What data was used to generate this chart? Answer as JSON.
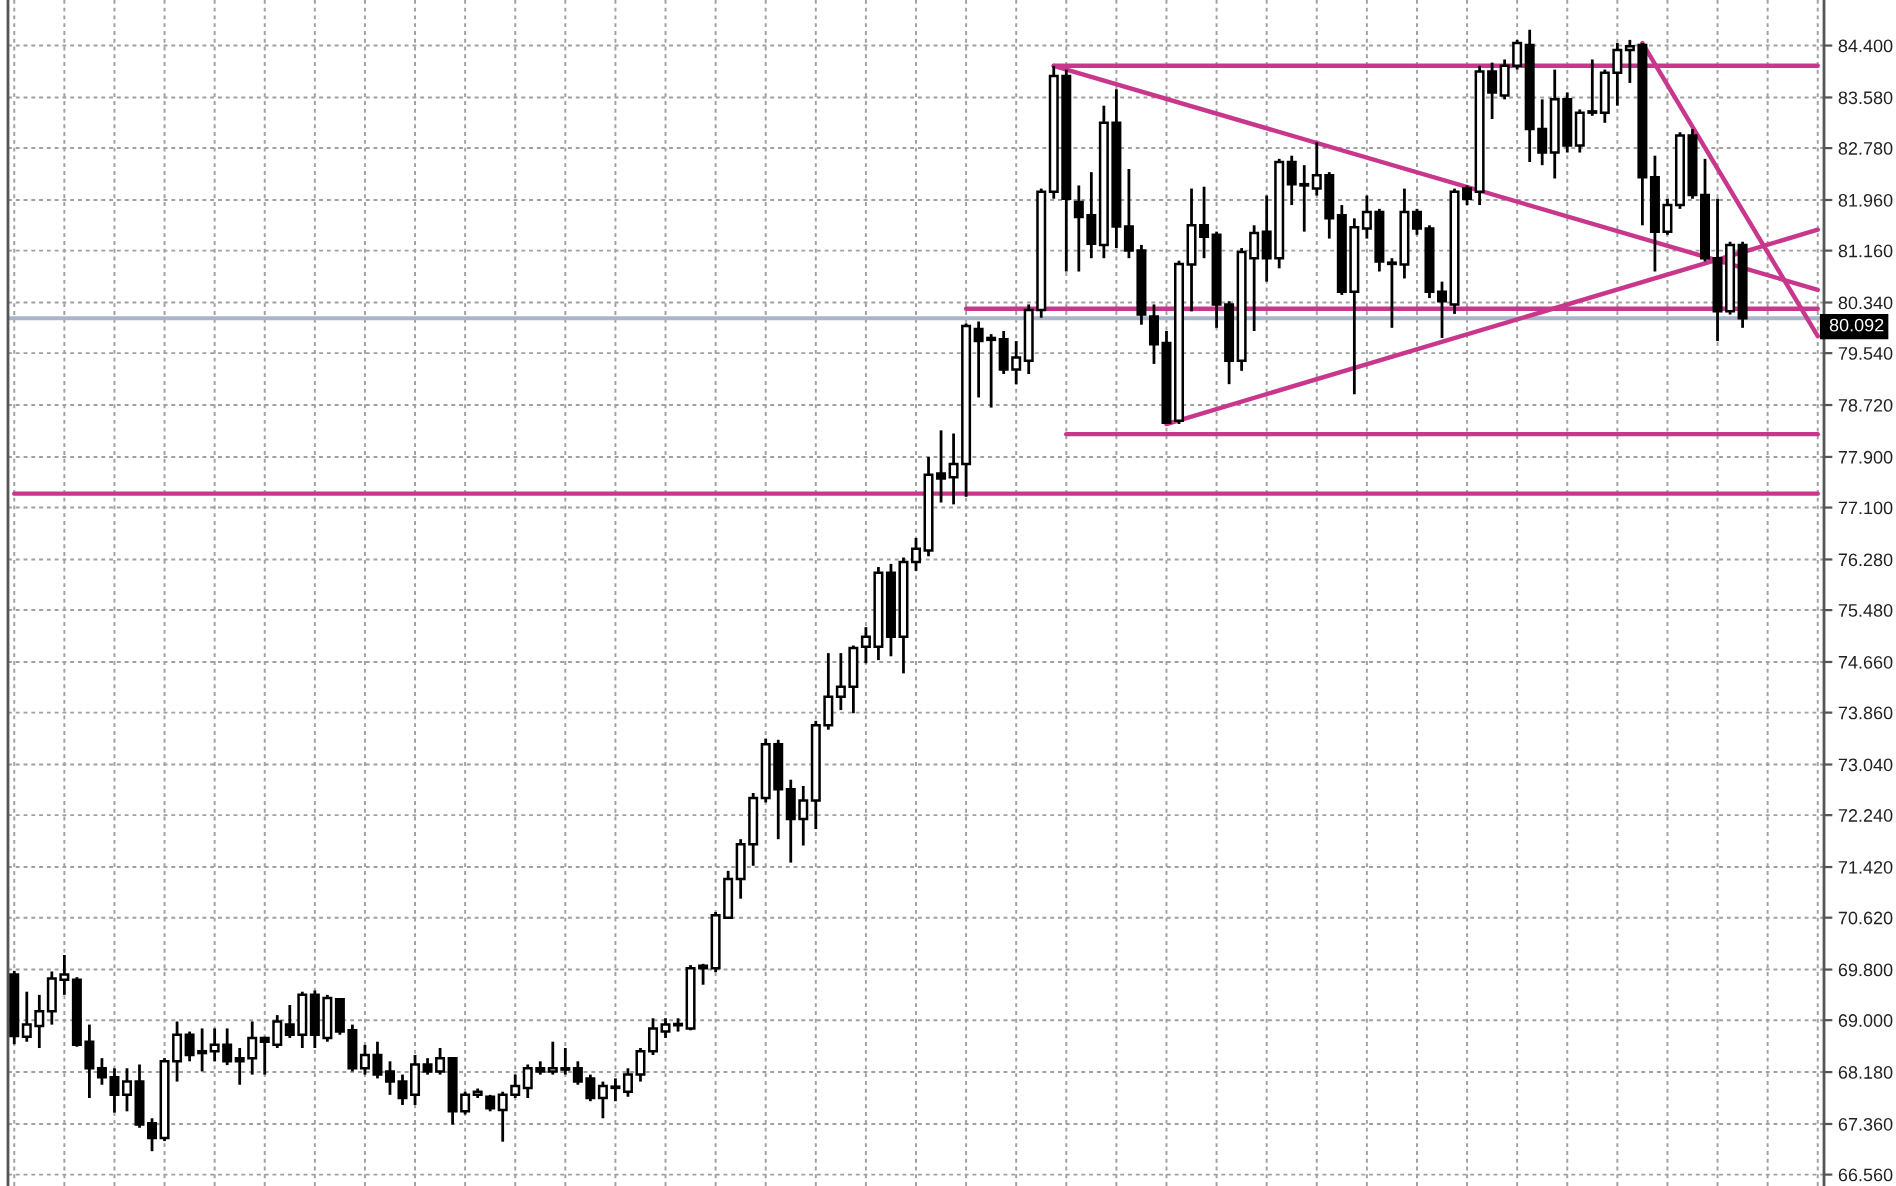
{
  "chart_data": {
    "type": "candlestick",
    "categories": [
      null,
      null,
      null,
      null,
      null,
      null,
      null,
      null,
      null,
      null,
      null,
      null,
      null,
      null,
      null,
      null,
      null,
      null,
      null,
      null,
      null,
      null,
      null,
      null,
      null,
      null,
      null,
      null,
      null,
      null,
      null,
      null,
      null,
      null,
      null,
      null,
      null,
      null,
      null,
      null,
      null,
      null,
      null,
      null,
      null,
      null,
      null,
      null,
      null,
      null,
      null,
      null,
      null,
      null,
      null,
      null,
      null,
      null,
      null,
      null,
      null,
      null,
      null,
      null,
      null,
      null,
      null,
      null,
      null,
      null,
      null,
      null,
      null,
      null,
      null,
      null,
      null,
      null,
      null,
      null,
      null,
      null,
      null,
      null,
      null,
      null,
      null,
      null,
      null,
      null,
      null,
      null,
      null,
      null,
      null,
      null,
      null,
      null,
      null,
      null,
      null,
      null,
      null,
      null,
      null,
      null,
      null,
      null,
      null,
      null,
      null,
      null,
      null,
      null,
      null,
      null,
      null,
      null,
      null,
      null,
      null,
      null,
      null,
      null,
      null,
      null,
      null,
      null,
      null,
      null,
      null,
      null,
      null,
      null,
      null,
      null,
      null,
      null,
      null,
      null,
      null,
      null,
      null,
      null,
      null
    ],
    "ohlc": [
      [
        69.72,
        69.78,
        68.62,
        68.75
      ],
      [
        68.74,
        69.45,
        68.66,
        68.93
      ],
      [
        68.91,
        69.4,
        68.56,
        69.14
      ],
      [
        69.14,
        69.77,
        68.93,
        69.66
      ],
      [
        69.64,
        70.03,
        69.4,
        69.72
      ],
      [
        69.64,
        69.68,
        68.58,
        68.61
      ],
      [
        68.66,
        68.93,
        67.77,
        68.24
      ],
      [
        68.24,
        68.4,
        67.98,
        68.1
      ],
      [
        68.1,
        68.24,
        67.54,
        67.82
      ],
      [
        67.82,
        68.24,
        67.56,
        68.03
      ],
      [
        68.03,
        68.3,
        67.3,
        67.35
      ],
      [
        67.37,
        67.45,
        66.93,
        67.14
      ],
      [
        67.14,
        68.4,
        67.09,
        68.35
      ],
      [
        68.35,
        68.98,
        68.03,
        68.77
      ],
      [
        68.77,
        68.82,
        68.35,
        68.45
      ],
      [
        68.48,
        68.87,
        68.19,
        68.51
      ],
      [
        68.51,
        68.87,
        68.35,
        68.61
      ],
      [
        68.61,
        68.87,
        68.29,
        68.35
      ],
      [
        68.4,
        68.56,
        67.98,
        68.35
      ],
      [
        68.4,
        68.98,
        68.14,
        68.72
      ],
      [
        68.72,
        68.74,
        68.14,
        68.66
      ],
      [
        68.61,
        69.08,
        68.56,
        68.98
      ],
      [
        68.93,
        69.24,
        68.72,
        68.77
      ],
      [
        68.77,
        69.45,
        68.56,
        69.4
      ],
      [
        69.4,
        69.47,
        68.56,
        68.77
      ],
      [
        68.72,
        69.4,
        68.66,
        69.35
      ],
      [
        69.33,
        69.35,
        68.77,
        68.82
      ],
      [
        68.84,
        68.93,
        68.19,
        68.24
      ],
      [
        68.24,
        68.61,
        68.14,
        68.45
      ],
      [
        68.45,
        68.66,
        68.08,
        68.14
      ],
      [
        68.19,
        68.35,
        67.82,
        68.03
      ],
      [
        68.03,
        68.14,
        67.66,
        67.77
      ],
      [
        67.82,
        68.45,
        67.66,
        68.3
      ],
      [
        68.3,
        68.4,
        68.14,
        68.19
      ],
      [
        68.19,
        68.56,
        68.14,
        68.4
      ],
      [
        68.4,
        68.4,
        67.35,
        67.56
      ],
      [
        67.56,
        67.87,
        67.51,
        67.82
      ],
      [
        67.82,
        67.92,
        67.77,
        67.87
      ],
      [
        67.79,
        67.82,
        67.56,
        67.61
      ],
      [
        67.58,
        67.87,
        67.08,
        67.82
      ],
      [
        67.82,
        68.14,
        67.77,
        67.96
      ],
      [
        67.93,
        68.3,
        67.77,
        68.24
      ],
      [
        68.24,
        68.35,
        68.14,
        68.19
      ],
      [
        68.19,
        68.66,
        68.14,
        68.24
      ],
      [
        68.24,
        68.56,
        68.14,
        68.22
      ],
      [
        68.24,
        68.35,
        67.98,
        68.03
      ],
      [
        68.08,
        68.14,
        67.72,
        67.77
      ],
      [
        67.77,
        68.03,
        67.45,
        67.96
      ],
      [
        67.95,
        68.08,
        67.72,
        67.93
      ],
      [
        67.87,
        68.24,
        67.79,
        68.14
      ],
      [
        68.14,
        68.56,
        68.03,
        68.51
      ],
      [
        68.51,
        69.03,
        68.45,
        68.87
      ],
      [
        68.82,
        69.03,
        68.72,
        68.93
      ],
      [
        68.92,
        69.03,
        68.82,
        68.94
      ],
      [
        68.87,
        69.87,
        68.84,
        69.82
      ],
      [
        69.82,
        69.89,
        69.56,
        69.86
      ],
      [
        69.82,
        70.71,
        69.76,
        70.66
      ],
      [
        70.62,
        71.36,
        70.6,
        71.23
      ],
      [
        71.23,
        71.86,
        70.92,
        71.78
      ],
      [
        71.78,
        72.59,
        71.44,
        72.51
      ],
      [
        72.51,
        73.45,
        72.44,
        73.36
      ],
      [
        73.36,
        73.43,
        71.86,
        72.65
      ],
      [
        72.65,
        72.8,
        71.49,
        72.18
      ],
      [
        72.18,
        72.7,
        71.76,
        72.47
      ],
      [
        72.47,
        73.73,
        72.02,
        73.66
      ],
      [
        73.66,
        74.8,
        73.59,
        74.11
      ],
      [
        74.11,
        74.8,
        73.9,
        74.27
      ],
      [
        74.27,
        74.92,
        73.85,
        74.88
      ],
      [
        74.9,
        75.21,
        74.64,
        75.06
      ],
      [
        74.9,
        76.16,
        74.69,
        76.07
      ],
      [
        76.07,
        76.21,
        74.75,
        75.06
      ],
      [
        75.06,
        76.31,
        74.48,
        76.24
      ],
      [
        76.24,
        76.62,
        76.1,
        76.45
      ],
      [
        76.42,
        77.9,
        76.33,
        77.62
      ],
      [
        77.64,
        78.32,
        77.18,
        77.56
      ],
      [
        77.58,
        78.27,
        77.15,
        77.79
      ],
      [
        77.79,
        80.01,
        77.27,
        79.97
      ],
      [
        79.92,
        80.04,
        78.84,
        79.73
      ],
      [
        79.75,
        79.84,
        78.68,
        79.78
      ],
      [
        79.76,
        79.89,
        79.21,
        79.28
      ],
      [
        79.28,
        79.73,
        79.05,
        79.47
      ],
      [
        79.42,
        80.31,
        79.21,
        80.22
      ],
      [
        80.22,
        82.14,
        80.1,
        82.09
      ],
      [
        82.09,
        84.08,
        81.98,
        83.92
      ],
      [
        83.92,
        84.02,
        80.83,
        81.98
      ],
      [
        81.93,
        82.19,
        80.83,
        81.69
      ],
      [
        81.72,
        82.4,
        81.04,
        81.27
      ],
      [
        81.25,
        83.45,
        81.04,
        83.18
      ],
      [
        83.18,
        83.71,
        81.2,
        81.54
      ],
      [
        81.54,
        82.45,
        81.04,
        81.16
      ],
      [
        81.16,
        81.25,
        79.99,
        80.15
      ],
      [
        80.12,
        80.31,
        79.37,
        79.68
      ],
      [
        79.7,
        79.89,
        78.42,
        78.44
      ],
      [
        78.47,
        81.0,
        78.42,
        80.95
      ],
      [
        80.94,
        82.14,
        80.2,
        81.56
      ],
      [
        81.56,
        82.17,
        81.04,
        81.38
      ],
      [
        81.41,
        81.46,
        79.94,
        80.31
      ],
      [
        80.31,
        80.36,
        79.05,
        79.42
      ],
      [
        79.42,
        81.2,
        79.26,
        81.14
      ],
      [
        81.04,
        81.56,
        79.89,
        81.44
      ],
      [
        81.46,
        82.03,
        80.67,
        81.04
      ],
      [
        81.04,
        82.61,
        80.88,
        82.56
      ],
      [
        82.56,
        82.66,
        81.88,
        82.21
      ],
      [
        82.21,
        82.51,
        81.46,
        82.19
      ],
      [
        82.14,
        82.87,
        82.03,
        82.35
      ],
      [
        82.35,
        82.4,
        81.35,
        81.67
      ],
      [
        81.72,
        81.88,
        80.46,
        80.51
      ],
      [
        80.51,
        81.67,
        78.89,
        81.53
      ],
      [
        81.51,
        82.03,
        81.35,
        81.77
      ],
      [
        81.77,
        81.82,
        80.83,
        80.99
      ],
      [
        80.97,
        81.04,
        79.94,
        80.95
      ],
      [
        80.94,
        82.14,
        80.72,
        81.77
      ],
      [
        81.77,
        81.82,
        81.41,
        81.51
      ],
      [
        81.51,
        81.56,
        80.41,
        80.51
      ],
      [
        80.51,
        80.67,
        79.78,
        80.36
      ],
      [
        80.31,
        82.14,
        80.16,
        82.09
      ],
      [
        82.14,
        82.19,
        81.88,
        81.98
      ],
      [
        82.09,
        84.08,
        81.88,
        83.99
      ],
      [
        83.99,
        84.13,
        83.24,
        83.66
      ],
      [
        83.61,
        84.18,
        83.55,
        84.08
      ],
      [
        84.08,
        84.49,
        84.02,
        84.44
      ],
      [
        84.41,
        84.65,
        82.56,
        83.08
      ],
      [
        83.08,
        83.55,
        82.51,
        82.71
      ],
      [
        82.71,
        84.02,
        82.3,
        83.55
      ],
      [
        83.55,
        83.66,
        82.71,
        82.82
      ],
      [
        82.82,
        83.39,
        82.71,
        83.34
      ],
      [
        83.34,
        84.18,
        83.29,
        83.36
      ],
      [
        83.34,
        84.02,
        83.18,
        83.97
      ],
      [
        83.97,
        84.44,
        83.45,
        84.33
      ],
      [
        84.33,
        84.49,
        83.81,
        84.39
      ],
      [
        84.41,
        84.44,
        81.56,
        82.32
      ],
      [
        82.32,
        82.66,
        80.83,
        81.46
      ],
      [
        81.46,
        81.98,
        81.41,
        81.88
      ],
      [
        81.88,
        83.03,
        81.82,
        82.98
      ],
      [
        82.98,
        83.08,
        81.98,
        82.04
      ],
      [
        82.04,
        82.61,
        80.99,
        81.04
      ],
      [
        81.04,
        81.98,
        79.73,
        80.2
      ],
      [
        80.2,
        81.3,
        80.15,
        81.25
      ],
      [
        81.25,
        81.3,
        79.94,
        80.09
      ],
      null,
      null,
      null,
      null,
      null,
      null
    ],
    "series": [
      {
        "type": "line",
        "color": "#c8378c",
        "values": [
          null,
          null,
          null,
          null,
          null,
          null,
          null,
          null,
          null,
          null,
          null,
          null,
          null,
          null,
          null,
          null,
          null,
          null,
          null,
          null,
          null,
          null,
          null,
          null,
          null,
          null,
          null,
          null,
          null,
          null,
          null,
          null,
          null,
          null,
          null,
          null,
          null,
          null,
          null,
          null,
          null,
          null,
          null,
          null,
          null,
          null,
          null,
          null,
          null,
          null,
          null,
          null,
          null,
          null,
          null,
          null,
          null,
          null,
          null,
          null,
          null,
          null,
          null,
          null,
          null,
          null,
          null,
          null,
          null,
          null,
          null,
          null,
          null,
          null,
          null,
          null,
          null,
          null,
          null,
          null,
          null,
          null,
          null,
          84.08,
          null,
          null,
          null,
          null,
          null,
          null,
          null,
          null,
          null,
          null,
          null,
          null,
          null,
          null,
          null,
          null,
          null,
          null,
          null,
          null,
          null,
          null,
          null,
          null,
          null,
          null,
          null,
          null,
          null,
          null,
          null,
          null,
          null,
          null,
          null,
          null,
          null,
          null,
          null,
          null,
          null,
          null,
          null,
          null,
          null,
          null,
          null,
          null,
          null,
          null,
          null,
          null,
          null,
          null,
          null,
          null,
          null,
          null,
          null,
          null,
          80.54
        ]
      },
      {
        "type": "line",
        "color": "#c8378c",
        "values": [
          null,
          null,
          null,
          null,
          null,
          null,
          null,
          null,
          null,
          null,
          null,
          null,
          null,
          null,
          null,
          null,
          null,
          null,
          null,
          null,
          null,
          null,
          null,
          null,
          null,
          null,
          null,
          null,
          null,
          null,
          null,
          null,
          null,
          null,
          null,
          null,
          null,
          null,
          null,
          null,
          null,
          null,
          null,
          null,
          null,
          null,
          null,
          null,
          null,
          null,
          null,
          null,
          null,
          null,
          null,
          null,
          null,
          null,
          null,
          null,
          null,
          null,
          null,
          null,
          null,
          null,
          null,
          null,
          null,
          null,
          null,
          null,
          null,
          null,
          null,
          null,
          null,
          null,
          null,
          null,
          null,
          null,
          null,
          null,
          null,
          null,
          null,
          null,
          null,
          null,
          null,
          null,
          78.42,
          null,
          null,
          null,
          null,
          null,
          null,
          null,
          null,
          null,
          null,
          null,
          null,
          null,
          null,
          null,
          null,
          null,
          null,
          null,
          null,
          null,
          null,
          null,
          null,
          null,
          null,
          null,
          null,
          null,
          null,
          null,
          null,
          null,
          null,
          null,
          null,
          null,
          null,
          null,
          null,
          null,
          null,
          null,
          null,
          null,
          null,
          null,
          null,
          null,
          null,
          null,
          81.49
        ]
      },
      {
        "type": "line",
        "color": "#c8378c",
        "values": [
          null,
          null,
          null,
          null,
          null,
          null,
          null,
          null,
          null,
          null,
          null,
          null,
          null,
          null,
          null,
          null,
          null,
          null,
          null,
          null,
          null,
          null,
          null,
          null,
          null,
          null,
          null,
          null,
          null,
          null,
          null,
          null,
          null,
          null,
          null,
          null,
          null,
          null,
          null,
          null,
          null,
          null,
          null,
          null,
          null,
          null,
          null,
          null,
          null,
          null,
          null,
          null,
          null,
          null,
          null,
          null,
          null,
          null,
          null,
          null,
          null,
          null,
          null,
          null,
          null,
          null,
          null,
          null,
          null,
          null,
          null,
          null,
          null,
          null,
          null,
          null,
          null,
          null,
          null,
          null,
          null,
          null,
          null,
          null,
          null,
          null,
          null,
          null,
          null,
          null,
          null,
          null,
          null,
          null,
          null,
          null,
          null,
          null,
          null,
          null,
          null,
          null,
          null,
          null,
          null,
          null,
          null,
          null,
          null,
          null,
          null,
          null,
          null,
          null,
          null,
          null,
          null,
          null,
          null,
          null,
          null,
          null,
          null,
          null,
          null,
          null,
          null,
          null,
          null,
          null,
          84.44,
          null,
          null,
          null,
          null,
          null,
          null,
          null,
          null,
          null,
          null,
          null,
          null,
          null,
          79.81
        ]
      },
      {
        "type": "line",
        "color": "#c8378c",
        "values": [
          null,
          null,
          null,
          null,
          null,
          null,
          null,
          null,
          null,
          null,
          null,
          null,
          null,
          null,
          null,
          null,
          null,
          null,
          null,
          null,
          null,
          null,
          null,
          null,
          null,
          null,
          null,
          null,
          null,
          null,
          null,
          null,
          null,
          null,
          null,
          null,
          null,
          null,
          null,
          null,
          null,
          null,
          null,
          null,
          null,
          null,
          null,
          null,
          null,
          null,
          null,
          null,
          null,
          null,
          null,
          null,
          null,
          null,
          null,
          null,
          null,
          null,
          null,
          null,
          null,
          null,
          null,
          null,
          null,
          null,
          null,
          null,
          null,
          null,
          null,
          null,
          null,
          null,
          null,
          null,
          null,
          null,
          null,
          84.08,
          null,
          null,
          null,
          null,
          null,
          null,
          null,
          null,
          null,
          null,
          null,
          null,
          null,
          null,
          null,
          null,
          null,
          null,
          null,
          null,
          null,
          null,
          null,
          null,
          null,
          null,
          null,
          null,
          null,
          null,
          null,
          null,
          null,
          null,
          null,
          null,
          null,
          null,
          null,
          null,
          null,
          null,
          null,
          null,
          null,
          null,
          null,
          null,
          null,
          null,
          null,
          null,
          null,
          null,
          null,
          null,
          null,
          null,
          null,
          null,
          84.08
        ]
      },
      {
        "type": "line",
        "color": "#c8378c",
        "values": [
          null,
          null,
          null,
          null,
          null,
          null,
          null,
          null,
          null,
          null,
          null,
          null,
          null,
          null,
          null,
          null,
          null,
          null,
          null,
          null,
          null,
          null,
          null,
          null,
          null,
          null,
          null,
          null,
          null,
          null,
          null,
          null,
          null,
          null,
          null,
          null,
          null,
          null,
          null,
          null,
          null,
          null,
          null,
          null,
          null,
          null,
          null,
          null,
          null,
          null,
          null,
          null,
          null,
          null,
          null,
          null,
          null,
          null,
          null,
          null,
          null,
          null,
          null,
          null,
          null,
          null,
          null,
          null,
          null,
          null,
          null,
          null,
          null,
          null,
          null,
          null,
          80.24,
          null,
          null,
          null,
          null,
          null,
          null,
          null,
          null,
          null,
          null,
          null,
          null,
          null,
          null,
          null,
          null,
          null,
          null,
          null,
          null,
          null,
          null,
          null,
          null,
          null,
          null,
          null,
          null,
          null,
          null,
          null,
          null,
          null,
          null,
          null,
          null,
          null,
          null,
          null,
          null,
          null,
          null,
          null,
          null,
          null,
          null,
          null,
          null,
          null,
          null,
          null,
          null,
          null,
          null,
          null,
          null,
          null,
          null,
          null,
          null,
          null,
          null,
          null,
          null,
          null,
          null,
          null,
          80.24
        ]
      },
      {
        "type": "line",
        "color": "#c8378c",
        "values": [
          null,
          null,
          null,
          null,
          null,
          null,
          null,
          null,
          null,
          null,
          null,
          null,
          null,
          null,
          null,
          null,
          null,
          null,
          null,
          null,
          null,
          null,
          null,
          null,
          null,
          null,
          null,
          null,
          null,
          null,
          null,
          null,
          null,
          null,
          null,
          null,
          null,
          null,
          null,
          null,
          null,
          null,
          null,
          null,
          null,
          null,
          null,
          null,
          null,
          null,
          null,
          null,
          null,
          null,
          null,
          null,
          null,
          null,
          null,
          null,
          null,
          null,
          null,
          null,
          null,
          null,
          null,
          null,
          null,
          null,
          null,
          null,
          null,
          null,
          null,
          null,
          null,
          null,
          null,
          null,
          null,
          null,
          null,
          null,
          78.26,
          null,
          null,
          null,
          null,
          null,
          null,
          null,
          null,
          null,
          null,
          null,
          null,
          null,
          null,
          null,
          null,
          null,
          null,
          null,
          null,
          null,
          null,
          null,
          null,
          null,
          null,
          null,
          null,
          null,
          null,
          null,
          null,
          null,
          null,
          null,
          null,
          null,
          null,
          null,
          null,
          null,
          null,
          null,
          null,
          null,
          null,
          null,
          null,
          null,
          null,
          null,
          null,
          null,
          null,
          null,
          null,
          null,
          null,
          null,
          78.26
        ]
      },
      {
        "type": "line",
        "color": "#c8378c",
        "values": [
          77.32,
          null,
          null,
          null,
          null,
          null,
          null,
          null,
          null,
          null,
          null,
          null,
          null,
          null,
          null,
          null,
          null,
          null,
          null,
          null,
          null,
          null,
          null,
          null,
          null,
          null,
          null,
          null,
          null,
          null,
          null,
          null,
          null,
          null,
          null,
          null,
          null,
          null,
          null,
          null,
          null,
          null,
          null,
          null,
          null,
          null,
          null,
          null,
          null,
          null,
          null,
          null,
          null,
          null,
          null,
          null,
          null,
          null,
          null,
          null,
          null,
          null,
          null,
          null,
          null,
          null,
          null,
          null,
          null,
          null,
          null,
          null,
          null,
          null,
          null,
          null,
          null,
          null,
          null,
          null,
          null,
          null,
          null,
          null,
          null,
          null,
          null,
          null,
          null,
          null,
          null,
          null,
          null,
          null,
          null,
          null,
          null,
          null,
          null,
          null,
          null,
          null,
          null,
          null,
          null,
          null,
          null,
          null,
          null,
          null,
          null,
          null,
          null,
          null,
          null,
          null,
          null,
          null,
          null,
          null,
          null,
          null,
          null,
          null,
          null,
          null,
          null,
          null,
          null,
          null,
          null,
          null,
          null,
          null,
          null,
          null,
          null,
          null,
          null,
          null,
          null,
          null,
          null,
          null,
          77.32
        ]
      }
    ],
    "ref_lines": [
      {
        "axis": "y",
        "value": 80.092,
        "label": "80.092",
        "color": "#a9b6c9"
      }
    ],
    "ylim": [
      66.38,
      85.12
    ],
    "yticks": [
      {
        "value": 84.4,
        "label": "84.400"
      },
      {
        "value": 83.58,
        "label": "83.580"
      },
      {
        "value": 82.78,
        "label": "82.780"
      },
      {
        "value": 81.96,
        "label": "81.960"
      },
      {
        "value": 81.16,
        "label": "81.160"
      },
      {
        "value": 80.34,
        "label": "80.340"
      },
      {
        "value": 79.54,
        "label": "79.540"
      },
      {
        "value": 78.72,
        "label": "78.720"
      },
      {
        "value": 77.9,
        "label": "77.900"
      },
      {
        "value": 77.1,
        "label": "77.100"
      },
      {
        "value": 76.28,
        "label": "76.280"
      },
      {
        "value": 75.48,
        "label": "75.480"
      },
      {
        "value": 74.66,
        "label": "74.660"
      },
      {
        "value": 73.86,
        "label": "73.860"
      },
      {
        "value": 73.04,
        "label": "73.040"
      },
      {
        "value": 72.24,
        "label": "72.240"
      },
      {
        "value": 71.42,
        "label": "71.420"
      },
      {
        "value": 70.62,
        "label": "70.620"
      },
      {
        "value": 69.8,
        "label": "69.800"
      },
      {
        "value": 69.0,
        "label": "69.000"
      },
      {
        "value": 68.18,
        "label": "68.180"
      },
      {
        "value": 67.36,
        "label": "67.360"
      },
      {
        "value": 66.56,
        "label": "66.560"
      }
    ],
    "grid": true
  }
}
